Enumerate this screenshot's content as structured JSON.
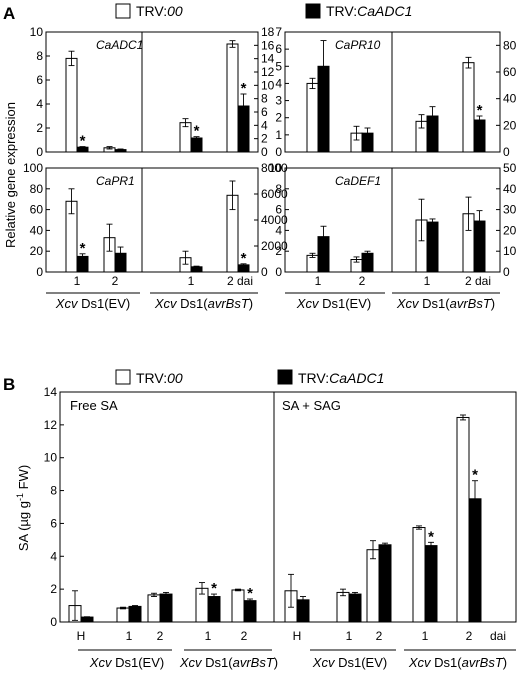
{
  "panels": {
    "A": {
      "letter": "A"
    },
    "B": {
      "letter": "B"
    }
  },
  "legend": {
    "control": "TRV:00",
    "control_prefix": "TRV:",
    "control_italic": "00",
    "silenced": "TRV:CaADC1",
    "silenced_prefix": "TRV:",
    "silenced_italic": "CaADC1"
  },
  "panel_a": {
    "ylabel": "Relative gene expression",
    "groups": {
      "ev": {
        "italic": "Xcv",
        "rest": " Ds1(EV)"
      },
      "avr": {
        "italic": "Xcv",
        "rest": " Ds1(",
        "italic2": "avrBsT",
        "end": ")"
      }
    },
    "day_labels": [
      "1",
      "2",
      "1",
      "2 dai"
    ]
  },
  "panel_b": {
    "ylabel_prefix": "SA (",
    "ylabel_mu": "µ",
    "ylabel_g": "g g",
    "ylabel_sup": "-1",
    "ylabel_end": " FW)",
    "left_title": "Free SA",
    "right_title": "SA + SAG",
    "x_labels": [
      "H",
      "1",
      "2",
      "1",
      "2"
    ],
    "dai": "dai",
    "groups": {
      "ev": {
        "italic": "Xcv",
        "rest": " Ds1(EV)"
      },
      "avr": {
        "italic": "Xcv",
        "rest": " Ds1(",
        "italic2": "avrBsT",
        "end": ")"
      }
    }
  },
  "chart_data": [
    {
      "type": "bar",
      "gene": "CaADC1",
      "left": {
        "ylim": [
          0,
          10
        ],
        "ticks": [
          0,
          2,
          4,
          6,
          8,
          10
        ],
        "trv00": [
          7.8,
          0.35
        ],
        "trv00_err": [
          0.6,
          0.1
        ],
        "trvcaadc1": [
          0.4,
          0.2
        ],
        "trvcaadc1_err": [
          0.05,
          0.05
        ],
        "sig": [
          false,
          false
        ],
        "sig_silenced": [
          true,
          false
        ]
      },
      "right": {
        "ylim": [
          0,
          18
        ],
        "ticks": [
          0,
          2,
          4,
          6,
          8,
          10,
          12,
          14,
          16,
          18
        ],
        "trv00": [
          4.4,
          16.2
        ],
        "trv00_err": [
          0.6,
          0.5
        ],
        "trvcaadc1": [
          2.1,
          6.9
        ],
        "trvcaadc1_err": [
          0.2,
          1.8
        ],
        "sig_silenced": [
          true,
          true
        ]
      }
    },
    {
      "type": "bar",
      "gene": "CaPR10",
      "left": {
        "ylim": [
          0,
          7
        ],
        "ticks": [
          0,
          1,
          2,
          3,
          4,
          5,
          6,
          7
        ],
        "trv00": [
          4.0,
          1.1
        ],
        "trv00_err": [
          0.3,
          0.4
        ],
        "trvcaadc1": [
          5.0,
          1.1
        ],
        "trvcaadc1_err": [
          1.5,
          0.3
        ],
        "sig_silenced": [
          false,
          false
        ]
      },
      "right": {
        "ylim": [
          0,
          90
        ],
        "ticks": [
          0,
          20,
          40,
          60,
          80
        ],
        "trv00": [
          23,
          67
        ],
        "trv00_err": [
          5,
          4
        ],
        "trvcaadc1": [
          27,
          24
        ],
        "trvcaadc1_err": [
          7,
          3
        ],
        "sig_silenced": [
          false,
          true
        ]
      }
    },
    {
      "type": "bar",
      "gene": "CaPR1",
      "left": {
        "ylim": [
          0,
          100
        ],
        "ticks": [
          0,
          20,
          40,
          60,
          80,
          100
        ],
        "trv00": [
          68,
          33
        ],
        "trv00_err": [
          12,
          13
        ],
        "trvcaadc1": [
          15,
          18
        ],
        "trvcaadc1_err": [
          2.5,
          6
        ],
        "sig_silenced": [
          true,
          false
        ]
      },
      "right": {
        "ylim": [
          0,
          8000
        ],
        "ticks": [
          0,
          2000,
          4000,
          6000,
          8000
        ],
        "trv00": [
          1100,
          5900
        ],
        "trv00_err": [
          500,
          1100
        ],
        "trvcaadc1": [
          400,
          550
        ],
        "trvcaadc1_err": [
          50,
          80
        ],
        "sig_silenced": [
          false,
          true
        ]
      }
    },
    {
      "type": "bar",
      "gene": "CaDEF1",
      "left": {
        "ylim": [
          0,
          10
        ],
        "ticks": [
          0,
          2,
          4,
          6,
          8,
          10
        ],
        "trv00": [
          1.6,
          1.2
        ],
        "trv00_err": [
          0.2,
          0.25
        ],
        "trvcaadc1": [
          3.4,
          1.8
        ],
        "trvcaadc1_err": [
          1.0,
          0.2
        ],
        "sig_silenced": [
          false,
          false
        ]
      },
      "right": {
        "ylim": [
          0,
          50
        ],
        "ticks": [
          0,
          10,
          20,
          30,
          40,
          50
        ],
        "trv00": [
          25,
          28
        ],
        "trv00_err": [
          10,
          8
        ],
        "trvcaadc1": [
          24,
          24.5
        ],
        "trvcaadc1_err": [
          1.5,
          5
        ],
        "sig_silenced": [
          false,
          false
        ]
      }
    },
    {
      "type": "bar",
      "title": "Free SA",
      "ylim": [
        0,
        14
      ],
      "ticks": [
        0,
        2,
        4,
        6,
        8,
        10,
        12,
        14
      ],
      "categories": [
        "H",
        "1",
        "2",
        "1",
        "2"
      ],
      "trv00": [
        1.0,
        0.85,
        1.65,
        2.05,
        1.95
      ],
      "trv00_err": [
        0.9,
        0.05,
        0.1,
        0.35,
        0.05
      ],
      "trvcaadc1": [
        0.3,
        0.95,
        1.7,
        1.55,
        1.3
      ],
      "trvcaadc1_err": [
        0.02,
        0.05,
        0.1,
        0.15,
        0.1
      ],
      "sig_silenced": [
        false,
        false,
        false,
        true,
        true
      ]
    },
    {
      "type": "bar",
      "title": "SA + SAG",
      "ylim": [
        0,
        14
      ],
      "categories": [
        "H",
        "1",
        "2",
        "1",
        "2"
      ],
      "trv00": [
        1.9,
        1.8,
        4.4,
        5.75,
        12.45
      ],
      "trv00_err": [
        1.0,
        0.2,
        0.55,
        0.1,
        0.15
      ],
      "trvcaadc1": [
        1.35,
        1.7,
        4.7,
        4.65,
        7.5
      ],
      "trvcaadc1_err": [
        0.2,
        0.1,
        0.1,
        0.2,
        1.1
      ],
      "sig_silenced": [
        false,
        false,
        false,
        true,
        true
      ]
    }
  ]
}
